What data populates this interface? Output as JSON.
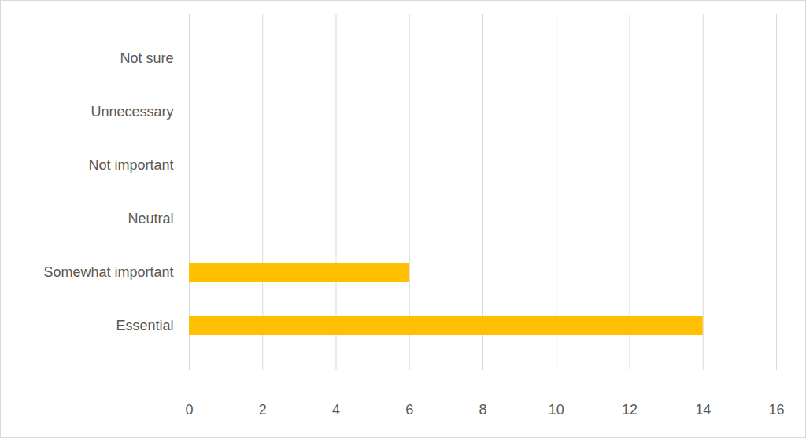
{
  "chart_data": {
    "type": "bar",
    "orientation": "horizontal",
    "categories": [
      "Not sure",
      "Unnecessary",
      "Not important",
      "Neutral",
      "Somewhat important",
      "Essential"
    ],
    "values": [
      0,
      0,
      0,
      0,
      6,
      14
    ],
    "color": "#ffc000",
    "xlim": [
      0,
      16
    ],
    "xticks": [
      0,
      2,
      4,
      6,
      8,
      10,
      12,
      14,
      16
    ],
    "grid": true
  }
}
